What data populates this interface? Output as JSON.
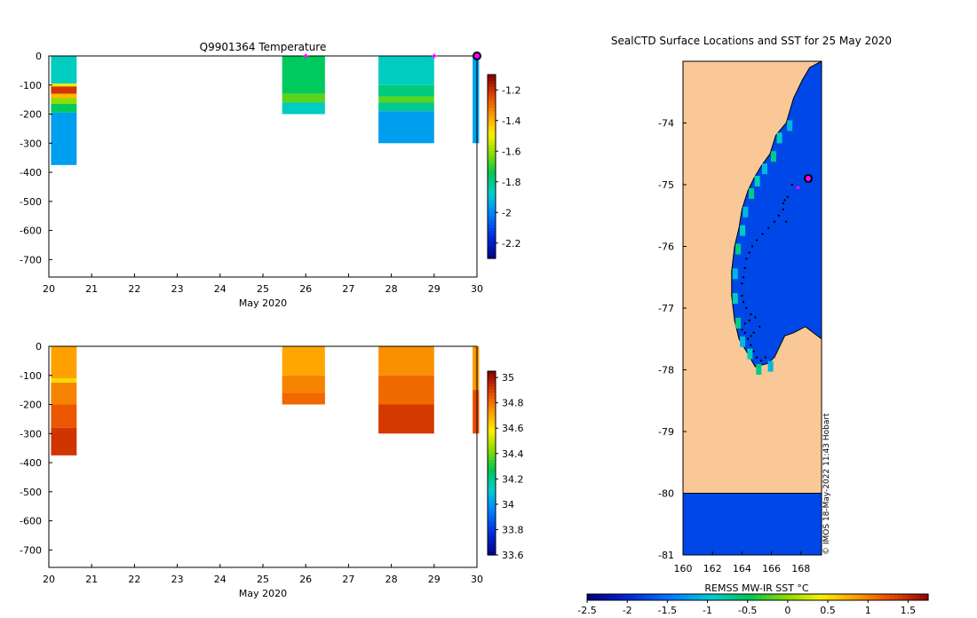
{
  "chart_data": [
    {
      "type": "heatmap",
      "title": "Q9901364  Temperature",
      "xlabel": "May 2020",
      "ylabel": "",
      "xlim": [
        20,
        30
      ],
      "ylim": [
        -760,
        0
      ],
      "xticks": [
        "20",
        "21",
        "22",
        "23",
        "24",
        "25",
        "26",
        "27",
        "28",
        "29",
        "30"
      ],
      "yticks": [
        "0",
        "-100",
        "-200",
        "-300",
        "-400",
        "-500",
        "-600",
        "-700"
      ],
      "colorbar": {
        "min": -2.3,
        "max": -1.1,
        "ticks": [
          "-1.2",
          "-1.4",
          "-1.6",
          "-1.8",
          "-2",
          "-2.2"
        ]
      },
      "profile_markers": [
        26,
        29
      ],
      "current_marker": 30,
      "profiles": [
        {
          "x0": 20.05,
          "x1": 20.65,
          "depth": 375,
          "layers": [
            {
              "from": 0,
              "to": 95,
              "value": -1.85
            },
            {
              "from": 95,
              "to": 105,
              "value": -1.5
            },
            {
              "from": 105,
              "to": 130,
              "value": -1.2
            },
            {
              "from": 130,
              "to": 145,
              "value": -1.4
            },
            {
              "from": 145,
              "to": 165,
              "value": -1.6
            },
            {
              "from": 165,
              "to": 195,
              "value": -1.75
            },
            {
              "from": 195,
              "to": 375,
              "value": -1.95
            }
          ]
        },
        {
          "x0": 25.45,
          "x1": 26.45,
          "depth": 200,
          "layers": [
            {
              "from": 0,
              "to": 130,
              "value": -1.75
            },
            {
              "from": 130,
              "to": 160,
              "value": -1.65
            },
            {
              "from": 160,
              "to": 200,
              "value": -1.85
            }
          ]
        },
        {
          "x0": 27.7,
          "x1": 29.0,
          "depth": 300,
          "layers": [
            {
              "from": 0,
              "to": 100,
              "value": -1.85
            },
            {
              "from": 100,
              "to": 140,
              "value": -1.78
            },
            {
              "from": 140,
              "to": 160,
              "value": -1.65
            },
            {
              "from": 160,
              "to": 190,
              "value": -1.8
            },
            {
              "from": 190,
              "to": 300,
              "value": -1.95
            }
          ]
        },
        {
          "x0": 29.9,
          "x1": 30.05,
          "depth": 300,
          "layers": [
            {
              "from": 0,
              "to": 300,
              "value": -1.95
            }
          ]
        }
      ]
    },
    {
      "type": "heatmap",
      "title": "",
      "xlabel": "May 2020",
      "ylabel": "",
      "xlim": [
        20,
        30
      ],
      "ylim": [
        -760,
        0
      ],
      "xticks": [
        "20",
        "21",
        "22",
        "23",
        "24",
        "25",
        "26",
        "27",
        "28",
        "29",
        "30"
      ],
      "yticks": [
        "0",
        "-100",
        "-200",
        "-300",
        "-400",
        "-500",
        "-600",
        "-700"
      ],
      "colorbar": {
        "min": 33.6,
        "max": 35.05,
        "ticks": [
          "35",
          "34.8",
          "34.6",
          "34.4",
          "34.2",
          "34",
          "33.8",
          "33.6"
        ]
      },
      "profiles": [
        {
          "x0": 20.05,
          "x1": 20.65,
          "depth": 375,
          "layers": [
            {
              "from": 0,
              "to": 110,
              "value": 34.73
            },
            {
              "from": 110,
              "to": 125,
              "value": 34.63
            },
            {
              "from": 125,
              "to": 200,
              "value": 34.78
            },
            {
              "from": 200,
              "to": 280,
              "value": 34.86
            },
            {
              "from": 280,
              "to": 375,
              "value": 34.93
            }
          ]
        },
        {
          "x0": 25.45,
          "x1": 26.45,
          "depth": 200,
          "layers": [
            {
              "from": 0,
              "to": 100,
              "value": 34.72
            },
            {
              "from": 100,
              "to": 160,
              "value": 34.78
            },
            {
              "from": 160,
              "to": 200,
              "value": 34.83
            }
          ]
        },
        {
          "x0": 27.7,
          "x1": 29.0,
          "depth": 300,
          "layers": [
            {
              "from": 0,
              "to": 100,
              "value": 34.76
            },
            {
              "from": 100,
              "to": 200,
              "value": 34.83
            },
            {
              "from": 200,
              "to": 300,
              "value": 34.92
            }
          ]
        },
        {
          "x0": 29.9,
          "x1": 30.05,
          "depth": 300,
          "layers": [
            {
              "from": 0,
              "to": 150,
              "value": 34.75
            },
            {
              "from": 150,
              "to": 300,
              "value": 34.88
            }
          ]
        }
      ]
    },
    {
      "type": "map",
      "title": "SealCTD Surface Locations and SST for 25 May 2020",
      "xlabel": "",
      "ylabel": "",
      "xlim": [
        160,
        169.4
      ],
      "ylim": [
        -81,
        -73
      ],
      "xticks": [
        "160",
        "162",
        "164",
        "166",
        "168"
      ],
      "yticks": [
        "-74",
        "-75",
        "-76",
        "-77",
        "-78",
        "-79",
        "-80",
        "-81"
      ],
      "credit": "© IMOS 18-May-2022 11:43 Hobart",
      "colorbar": {
        "label": "REMSS MW-IR SST °C",
        "min": -2.5,
        "max": 1.75,
        "ticks": [
          "-2.5",
          "-2",
          "-1.5",
          "-1",
          "-0.5",
          "0",
          "0.5",
          "1",
          "1.5"
        ]
      },
      "land_color": "#f9c896",
      "ocean_sst": -1.8,
      "current_position": [
        168.5,
        -74.9
      ],
      "latest_position": [
        167.8,
        -75.05
      ],
      "track": [
        [
          167.4,
          -75.0
        ],
        [
          167.1,
          -75.2
        ],
        [
          166.8,
          -75.3
        ],
        [
          166.5,
          -75.5
        ],
        [
          166.2,
          -75.6
        ],
        [
          165.8,
          -75.7
        ],
        [
          165.4,
          -75.8
        ],
        [
          165.0,
          -75.9
        ],
        [
          164.7,
          -76.0
        ],
        [
          164.5,
          -76.1
        ],
        [
          164.3,
          -76.2
        ],
        [
          164.2,
          -76.35
        ],
        [
          164.1,
          -76.5
        ],
        [
          164.0,
          -76.6
        ],
        [
          164.0,
          -76.8
        ],
        [
          164.1,
          -76.9
        ],
        [
          164.3,
          -77.0
        ],
        [
          164.6,
          -77.1
        ],
        [
          164.9,
          -77.15
        ],
        [
          164.5,
          -77.2
        ],
        [
          164.2,
          -77.25
        ],
        [
          164.0,
          -77.35
        ],
        [
          164.2,
          -77.4
        ],
        [
          164.4,
          -77.5
        ],
        [
          164.6,
          -77.6
        ],
        [
          164.8,
          -77.7
        ],
        [
          165.0,
          -77.8
        ],
        [
          165.3,
          -77.85
        ],
        [
          165.6,
          -77.8
        ],
        [
          164.8,
          -77.4
        ],
        [
          165.2,
          -77.3
        ],
        [
          164.6,
          -77.45
        ],
        [
          166.8,
          -75.4
        ],
        [
          167.0,
          -75.6
        ],
        [
          166.9,
          -75.25
        ]
      ],
      "panel_ocean": {
        "x_min": 161.0,
        "x_max": 169.4,
        "coast": [
          [
            169.4,
            -73.0
          ],
          [
            168.6,
            -73.1
          ],
          [
            168.1,
            -73.3
          ],
          [
            167.5,
            -73.6
          ],
          [
            167.0,
            -74.0
          ],
          [
            166.3,
            -74.2
          ],
          [
            165.9,
            -74.5
          ],
          [
            165.3,
            -74.7
          ],
          [
            164.8,
            -74.9
          ],
          [
            164.4,
            -75.1
          ],
          [
            164.0,
            -75.4
          ],
          [
            163.8,
            -75.7
          ],
          [
            163.5,
            -76.0
          ],
          [
            163.3,
            -76.4
          ],
          [
            163.3,
            -76.8
          ],
          [
            163.5,
            -77.2
          ],
          [
            163.8,
            -77.5
          ],
          [
            164.3,
            -77.7
          ],
          [
            164.9,
            -77.95
          ],
          [
            165.7,
            -77.9
          ],
          [
            166.2,
            -77.8
          ],
          [
            166.6,
            -77.6
          ],
          [
            166.9,
            -77.45
          ],
          [
            167.5,
            -77.4
          ],
          [
            168.3,
            -77.3
          ],
          [
            169.4,
            -77.5
          ]
        ]
      }
    }
  ]
}
